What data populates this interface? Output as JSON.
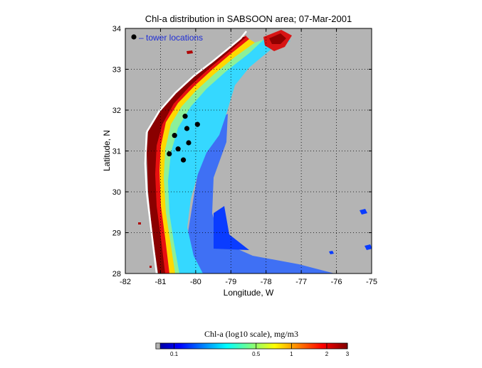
{
  "chart_data": {
    "type": "heatmap",
    "title": "Chl-a distribution in SABSOON area; 07-Mar-2001",
    "xlabel": "Longitude, W",
    "ylabel": "Latitude, N",
    "xlim": [
      -82,
      -75
    ],
    "ylim": [
      28,
      34
    ],
    "x_ticks": [
      "-82",
      "-81",
      "-80",
      "-79",
      "-78",
      "-77",
      "-76",
      "-75"
    ],
    "y_ticks": [
      "28",
      "29",
      "30",
      "31",
      "32",
      "33",
      "34"
    ],
    "grid": true,
    "legend": {
      "label": "– tower locations",
      "placement": "top-left",
      "marker_color": "#000000"
    },
    "tower_locations": [
      {
        "lon": -80.3,
        "lat": 31.85
      },
      {
        "lon": -79.95,
        "lat": 31.65
      },
      {
        "lon": -80.25,
        "lat": 31.55
      },
      {
        "lon": -80.6,
        "lat": 31.38
      },
      {
        "lon": -80.2,
        "lat": 31.2
      },
      {
        "lon": -80.5,
        "lat": 31.05
      },
      {
        "lon": -80.75,
        "lat": 30.93
      },
      {
        "lon": -80.35,
        "lat": 30.78
      }
    ],
    "colorbar": {
      "title": "Chl-a (log10 scale), mg/m3",
      "scale": "log10",
      "range": [
        0.07,
        3
      ],
      "ticks": [
        {
          "value": 0.1,
          "label": "0.1"
        },
        {
          "value": 0.5,
          "label": "0.5"
        },
        {
          "value": 1,
          "label": "1"
        },
        {
          "value": 2,
          "label": "2"
        },
        {
          "value": 3,
          "label": "3"
        }
      ],
      "colormap": "jet"
    },
    "colors": {
      "land_nodata": "#b4b4b4",
      "grid": "#000000"
    }
  }
}
